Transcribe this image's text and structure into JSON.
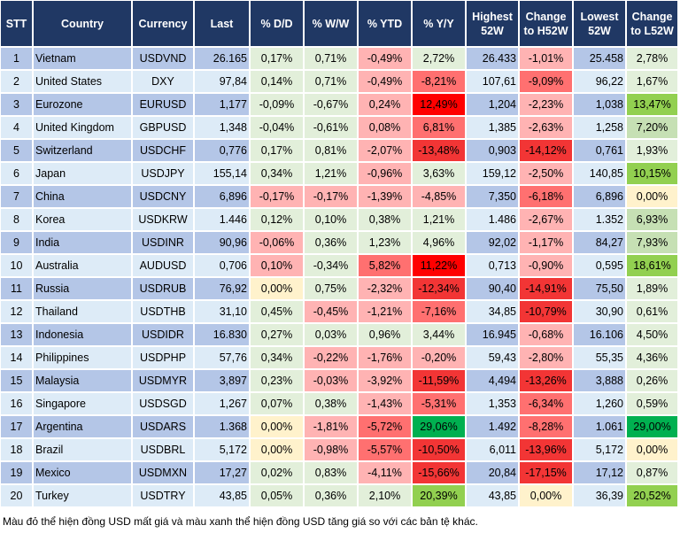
{
  "colors": {
    "header": "#203864",
    "row_odd": "#b4c6e7",
    "row_even": "#ddebf7",
    "g": "#e2efda",
    "p": "#ffb3b3",
    "r2": "#ff7070",
    "r3": "#f23535",
    "r4": "#ff0000",
    "y": "#fff2cc",
    "lg": "#c6e0b4",
    "G": "#92d050",
    "GG": "#00b050"
  },
  "headers": [
    "STT",
    "Country",
    "Currency",
    "Last",
    "% D/D",
    "% W/W",
    "% YTD",
    "% Y/Y",
    "Highest 52W",
    "Change to H52W",
    "Lowest 52W",
    "Change to L52W"
  ],
  "rows": [
    {
      "stt": "1",
      "country": "Vietnam",
      "currency": "USDVND",
      "last": "26.165",
      "dd": "0,17%",
      "ww": "0,71%",
      "ytd": "-0,49%",
      "yy": "2,72%",
      "high": "26.433",
      "chh": "-1,01%",
      "low": "25.458",
      "chl": "2,78%",
      "colors": [
        "g",
        "g",
        "p",
        "g",
        "p",
        "g"
      ]
    },
    {
      "stt": "2",
      "country": "United States",
      "currency": "DXY",
      "last": "97,84",
      "dd": "0,14%",
      "ww": "0,71%",
      "ytd": "-0,49%",
      "yy": "-8,21%",
      "high": "107,61",
      "chh": "-9,09%",
      "low": "96,22",
      "chl": "1,67%",
      "colors": [
        "g",
        "g",
        "p",
        "r2",
        "r2",
        "g"
      ]
    },
    {
      "stt": "3",
      "country": "Eurozone",
      "currency": "EURUSD",
      "last": "1,177",
      "dd": "-0,09%",
      "ww": "-0,67%",
      "ytd": "0,24%",
      "yy": "12,49%",
      "high": "1,204",
      "chh": "-2,23%",
      "low": "1,038",
      "chl": "13,47%",
      "colors": [
        "g",
        "g",
        "p",
        "r4",
        "p",
        "G"
      ]
    },
    {
      "stt": "4",
      "country": "United Kingdom",
      "currency": "GBPUSD",
      "last": "1,348",
      "dd": "-0,04%",
      "ww": "-0,61%",
      "ytd": "0,08%",
      "yy": "6,81%",
      "high": "1,385",
      "chh": "-2,63%",
      "low": "1,258",
      "chl": "7,20%",
      "colors": [
        "g",
        "g",
        "p",
        "r2",
        "p",
        "lg"
      ]
    },
    {
      "stt": "5",
      "country": "Switzerland",
      "currency": "USDCHF",
      "last": "0,776",
      "dd": "0,17%",
      "ww": "0,81%",
      "ytd": "-2,07%",
      "yy": "-13,48%",
      "high": "0,903",
      "chh": "-14,12%",
      "low": "0,761",
      "chl": "1,93%",
      "colors": [
        "g",
        "g",
        "p",
        "r3",
        "r3",
        "g"
      ]
    },
    {
      "stt": "6",
      "country": "Japan",
      "currency": "USDJPY",
      "last": "155,14",
      "dd": "0,34%",
      "ww": "1,21%",
      "ytd": "-0,96%",
      "yy": "3,63%",
      "high": "159,12",
      "chh": "-2,50%",
      "low": "140,85",
      "chl": "10,15%",
      "colors": [
        "g",
        "g",
        "p",
        "g",
        "p",
        "G"
      ]
    },
    {
      "stt": "7",
      "country": "China",
      "currency": "USDCNY",
      "last": "6,896",
      "dd": "-0,17%",
      "ww": "-0,17%",
      "ytd": "-1,39%",
      "yy": "-4,85%",
      "high": "7,350",
      "chh": "-6,18%",
      "low": "6,896",
      "chl": "0,00%",
      "colors": [
        "p",
        "p",
        "p",
        "p",
        "r2",
        "y"
      ]
    },
    {
      "stt": "8",
      "country": "Korea",
      "currency": "USDKRW",
      "last": "1.446",
      "dd": "0,12%",
      "ww": "0,10%",
      "ytd": "0,38%",
      "yy": "1,21%",
      "high": "1.486",
      "chh": "-2,67%",
      "low": "1.352",
      "chl": "6,93%",
      "colors": [
        "g",
        "g",
        "g",
        "g",
        "p",
        "lg"
      ]
    },
    {
      "stt": "9",
      "country": "India",
      "currency": "USDINR",
      "last": "90,96",
      "dd": "-0,06%",
      "ww": "0,36%",
      "ytd": "1,23%",
      "yy": "4,96%",
      "high": "92,02",
      "chh": "-1,17%",
      "low": "84,27",
      "chl": "7,93%",
      "colors": [
        "p",
        "g",
        "g",
        "g",
        "p",
        "lg"
      ]
    },
    {
      "stt": "10",
      "country": "Australia",
      "currency": "AUDUSD",
      "last": "0,706",
      "dd": "0,10%",
      "ww": "-0,34%",
      "ytd": "5,82%",
      "yy": "11,22%",
      "high": "0,713",
      "chh": "-0,90%",
      "low": "0,595",
      "chl": "18,61%",
      "colors": [
        "p",
        "g",
        "r2",
        "r4",
        "p",
        "G"
      ]
    },
    {
      "stt": "11",
      "country": "Russia",
      "currency": "USDRUB",
      "last": "76,92",
      "dd": "0,00%",
      "ww": "0,75%",
      "ytd": "-2,32%",
      "yy": "-12,34%",
      "high": "90,40",
      "chh": "-14,91%",
      "low": "75,50",
      "chl": "1,89%",
      "colors": [
        "y",
        "g",
        "p",
        "r3",
        "r3",
        "g"
      ]
    },
    {
      "stt": "12",
      "country": "Thailand",
      "currency": "USDTHB",
      "last": "31,10",
      "dd": "0,45%",
      "ww": "-0,45%",
      "ytd": "-1,21%",
      "yy": "-7,16%",
      "high": "34,85",
      "chh": "-10,79%",
      "low": "30,90",
      "chl": "0,61%",
      "colors": [
        "g",
        "p",
        "p",
        "r2",
        "r3",
        "g"
      ]
    },
    {
      "stt": "13",
      "country": "Indonesia",
      "currency": "USDIDR",
      "last": "16.830",
      "dd": "0,27%",
      "ww": "0,03%",
      "ytd": "0,96%",
      "yy": "3,44%",
      "high": "16.945",
      "chh": "-0,68%",
      "low": "16.106",
      "chl": "4,50%",
      "colors": [
        "g",
        "g",
        "g",
        "g",
        "p",
        "g"
      ]
    },
    {
      "stt": "14",
      "country": "Philippines",
      "currency": "USDPHP",
      "last": "57,76",
      "dd": "0,34%",
      "ww": "-0,22%",
      "ytd": "-1,76%",
      "yy": "-0,20%",
      "high": "59,43",
      "chh": "-2,80%",
      "low": "55,35",
      "chl": "4,36%",
      "colors": [
        "g",
        "p",
        "p",
        "p",
        "p",
        "g"
      ]
    },
    {
      "stt": "15",
      "country": "Malaysia",
      "currency": "USDMYR",
      "last": "3,897",
      "dd": "0,23%",
      "ww": "-0,03%",
      "ytd": "-3,92%",
      "yy": "-11,59%",
      "high": "4,494",
      "chh": "-13,26%",
      "low": "3,888",
      "chl": "0,26%",
      "colors": [
        "g",
        "p",
        "p",
        "r3",
        "r3",
        "g"
      ]
    },
    {
      "stt": "16",
      "country": "Singapore",
      "currency": "USDSGD",
      "last": "1,267",
      "dd": "0,07%",
      "ww": "0,38%",
      "ytd": "-1,43%",
      "yy": "-5,31%",
      "high": "1,353",
      "chh": "-6,34%",
      "low": "1,260",
      "chl": "0,59%",
      "colors": [
        "g",
        "g",
        "p",
        "r2",
        "r2",
        "g"
      ]
    },
    {
      "stt": "17",
      "country": "Argentina",
      "currency": "USDARS",
      "last": "1.368",
      "dd": "0,00%",
      "ww": "-1,81%",
      "ytd": "-5,72%",
      "yy": "29,06%",
      "high": "1.492",
      "chh": "-8,28%",
      "low": "1.061",
      "chl": "29,00%",
      "colors": [
        "y",
        "p",
        "r2",
        "GG",
        "r2",
        "GG"
      ]
    },
    {
      "stt": "18",
      "country": "Brazil",
      "currency": "USDBRL",
      "last": "5,172",
      "dd": "0,00%",
      "ww": "-0,98%",
      "ytd": "-5,57%",
      "yy": "-10,50%",
      "high": "6,011",
      "chh": "-13,96%",
      "low": "5,172",
      "chl": "0,00%",
      "colors": [
        "y",
        "p",
        "r2",
        "r3",
        "r3",
        "y"
      ]
    },
    {
      "stt": "19",
      "country": "Mexico",
      "currency": "USDMXN",
      "last": "17,27",
      "dd": "0,02%",
      "ww": "0,83%",
      "ytd": "-4,11%",
      "yy": "-15,66%",
      "high": "20,84",
      "chh": "-17,15%",
      "low": "17,12",
      "chl": "0,87%",
      "colors": [
        "g",
        "g",
        "p",
        "r3",
        "r3",
        "g"
      ]
    },
    {
      "stt": "20",
      "country": "Turkey",
      "currency": "USDTRY",
      "last": "43,85",
      "dd": "0,05%",
      "ww": "0,36%",
      "ytd": "2,10%",
      "yy": "20,39%",
      "high": "43,85",
      "chh": "0,00%",
      "low": "36,39",
      "chl": "20,52%",
      "colors": [
        "g",
        "g",
        "g",
        "G",
        "y",
        "G"
      ]
    }
  ],
  "footnote": "Màu đỏ thể hiện đồng USD mất giá và màu xanh thể hiện đồng USD tăng giá so với các bản tệ khác."
}
